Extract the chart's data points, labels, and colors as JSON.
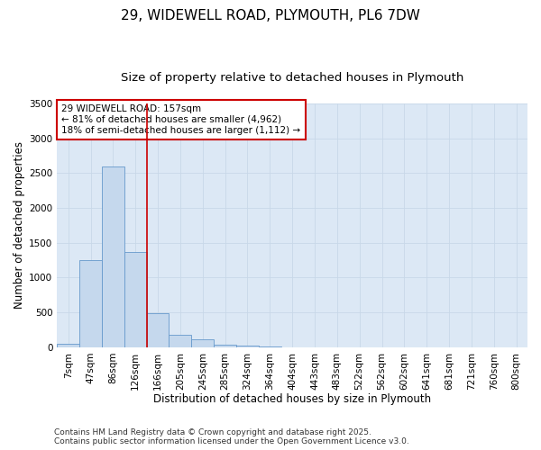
{
  "title_line1": "29, WIDEWELL ROAD, PLYMOUTH, PL6 7DW",
  "title_line2": "Size of property relative to detached houses in Plymouth",
  "xlabel": "Distribution of detached houses by size in Plymouth",
  "ylabel": "Number of detached properties",
  "categories": [
    "7sqm",
    "47sqm",
    "86sqm",
    "126sqm",
    "166sqm",
    "205sqm",
    "245sqm",
    "285sqm",
    "324sqm",
    "364sqm",
    "404sqm",
    "443sqm",
    "483sqm",
    "522sqm",
    "562sqm",
    "602sqm",
    "641sqm",
    "681sqm",
    "721sqm",
    "760sqm",
    "800sqm"
  ],
  "values": [
    55,
    1250,
    2600,
    1370,
    490,
    185,
    110,
    40,
    25,
    8,
    3,
    0,
    0,
    0,
    0,
    0,
    0,
    0,
    0,
    0,
    0
  ],
  "bar_color": "#c5d8ed",
  "bar_edge_color": "#6699cc",
  "vline_x": 3.5,
  "vline_color": "#cc0000",
  "annotation_text": "29 WIDEWELL ROAD: 157sqm\n← 81% of detached houses are smaller (4,962)\n18% of semi-detached houses are larger (1,112) →",
  "annotation_box_color": "#cc0000",
  "annotation_bg_color": "white",
  "ylim": [
    0,
    3500
  ],
  "yticks": [
    0,
    500,
    1000,
    1500,
    2000,
    2500,
    3000,
    3500
  ],
  "grid_color": "#c8d8e8",
  "background_color": "#dce8f5",
  "footer_line1": "Contains HM Land Registry data © Crown copyright and database right 2025.",
  "footer_line2": "Contains public sector information licensed under the Open Government Licence v3.0.",
  "title_fontsize": 11,
  "subtitle_fontsize": 9.5,
  "axis_label_fontsize": 8.5,
  "tick_fontsize": 7.5,
  "annotation_fontsize": 7.5,
  "footer_fontsize": 6.5
}
